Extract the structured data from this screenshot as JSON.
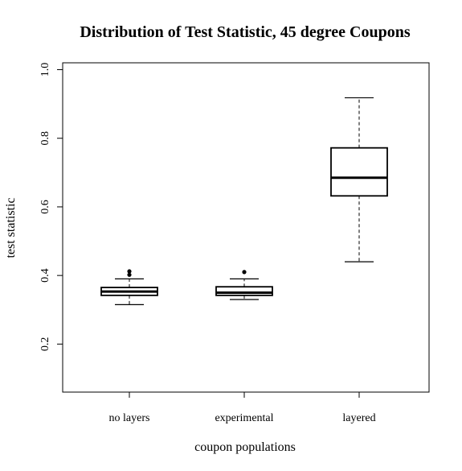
{
  "chart_data": {
    "type": "boxplot",
    "title": "Distribution of Test Statistic, 45 degree Coupons",
    "xlabel": "coupon populations",
    "ylabel": "test statistic",
    "ylim": [
      0.06,
      1.02
    ],
    "yticks": [
      "0.2",
      "0.4",
      "0.6",
      "0.8",
      "1.0"
    ],
    "categories": [
      "no layers",
      "experimental",
      "layered"
    ],
    "boxes": [
      {
        "category": "no layers",
        "whisker_low": 0.315,
        "q1": 0.342,
        "median": 0.353,
        "q3": 0.365,
        "whisker_high": 0.39,
        "outliers": [
          0.402,
          0.412
        ]
      },
      {
        "category": "experimental",
        "whisker_low": 0.33,
        "q1": 0.342,
        "median": 0.35,
        "q3": 0.367,
        "whisker_high": 0.39,
        "outliers": [
          0.41
        ]
      },
      {
        "category": "layered",
        "whisker_low": 0.44,
        "q1": 0.632,
        "median": 0.685,
        "q3": 0.772,
        "whisker_high": 0.918,
        "outliers": []
      }
    ],
    "grid": false,
    "legend": "none"
  }
}
